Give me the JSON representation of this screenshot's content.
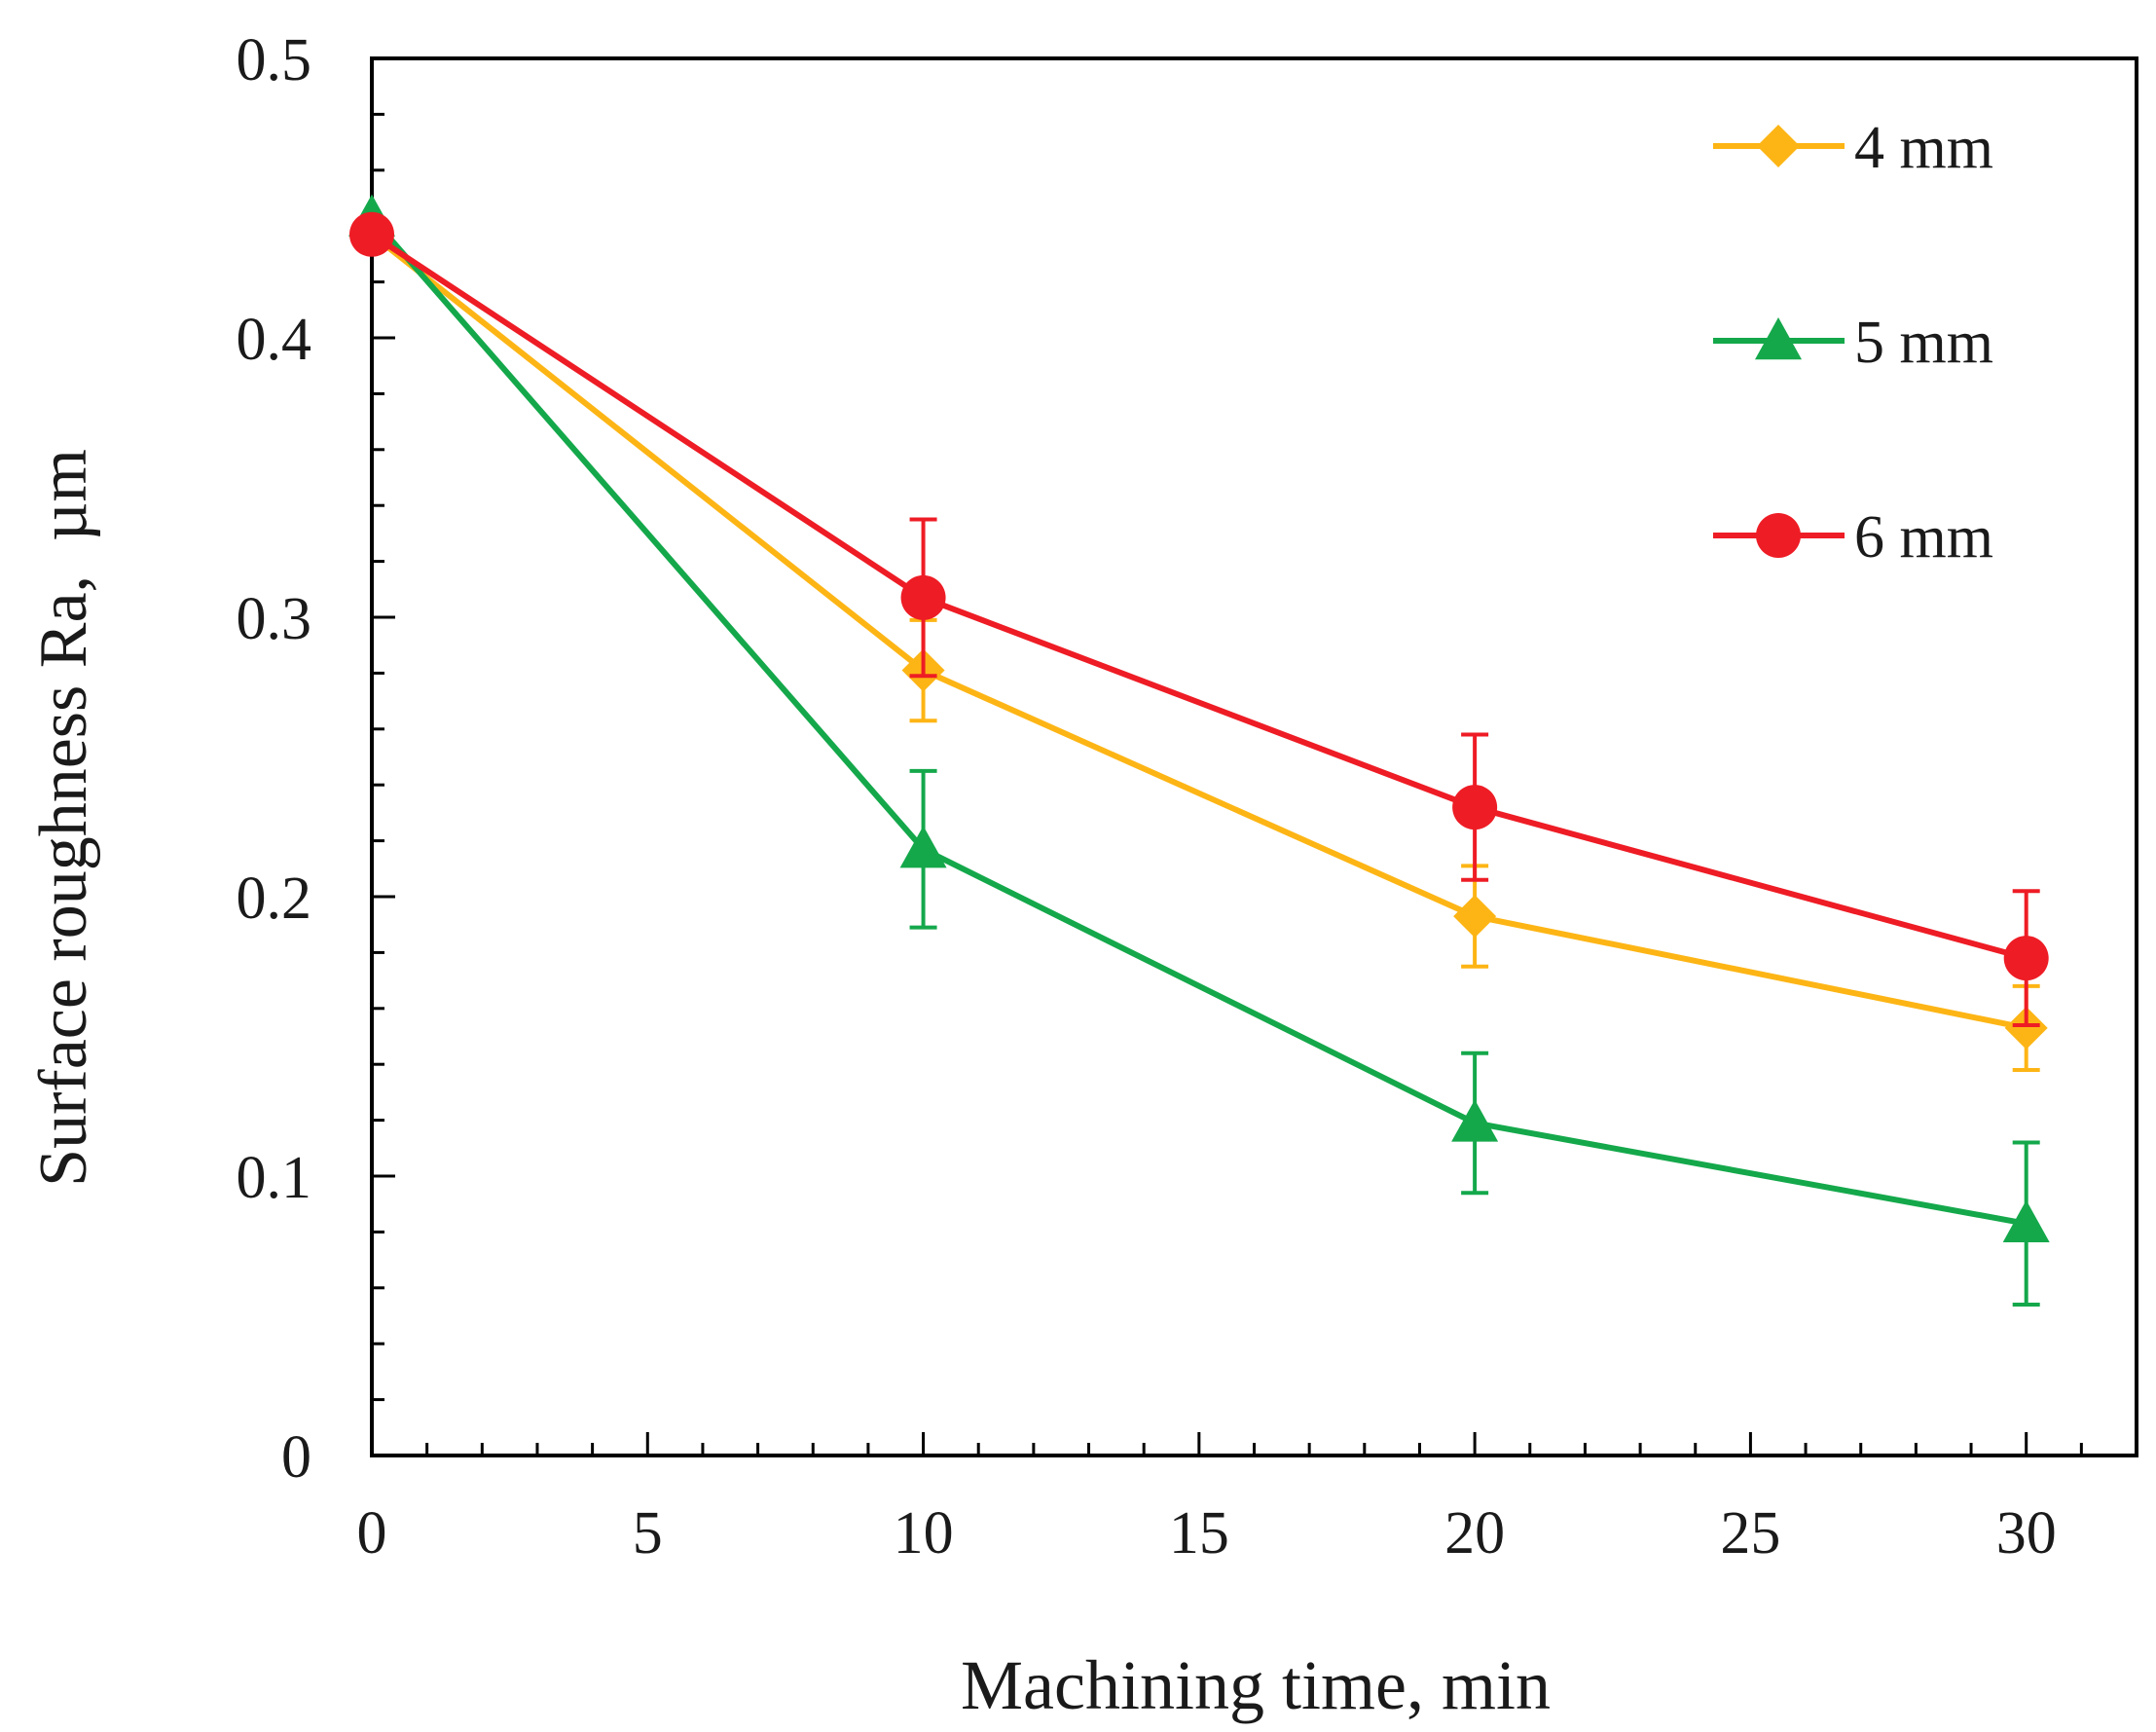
{
  "chart_data": {
    "type": "line",
    "title": "",
    "xlabel": "Machining time, min",
    "ylabel": "Surface roughness Ra,  µm",
    "xlim": [
      0,
      32
    ],
    "ylim": [
      0,
      0.5
    ],
    "x_ticks": [
      0,
      5,
      10,
      15,
      20,
      25,
      30
    ],
    "x_tick_labels": [
      "0",
      "5",
      "10",
      "15",
      "20",
      "25",
      "30"
    ],
    "y_ticks": [
      0,
      0.1,
      0.2,
      0.3,
      0.4,
      0.5
    ],
    "y_tick_labels": [
      "0",
      "0.1",
      "0.2",
      "0.3",
      "0.4",
      "0.5"
    ],
    "x_minor_step": 1,
    "y_minor_step": 0.02,
    "grid": false,
    "legend_position": "top-right",
    "series": [
      {
        "name": "4 mm",
        "color": "#FDB515",
        "marker": "diamond",
        "x": [
          0,
          10,
          20,
          30
        ],
        "y": [
          0.437,
          0.281,
          0.193,
          0.153
        ],
        "err": [
          0,
          0.018,
          0.018,
          0.015
        ]
      },
      {
        "name": "5 mm",
        "color": "#14A84B",
        "marker": "triangle",
        "x": [
          0,
          10,
          20,
          30
        ],
        "y": [
          0.443,
          0.217,
          0.119,
          0.083
        ],
        "err": [
          0,
          0.028,
          0.025,
          0.029
        ]
      },
      {
        "name": "6 mm",
        "color": "#EE1C25",
        "marker": "circle",
        "x": [
          0,
          10,
          20,
          30
        ],
        "y": [
          0.437,
          0.307,
          0.232,
          0.178
        ],
        "err": [
          0,
          0.028,
          0.026,
          0.024
        ]
      }
    ]
  }
}
